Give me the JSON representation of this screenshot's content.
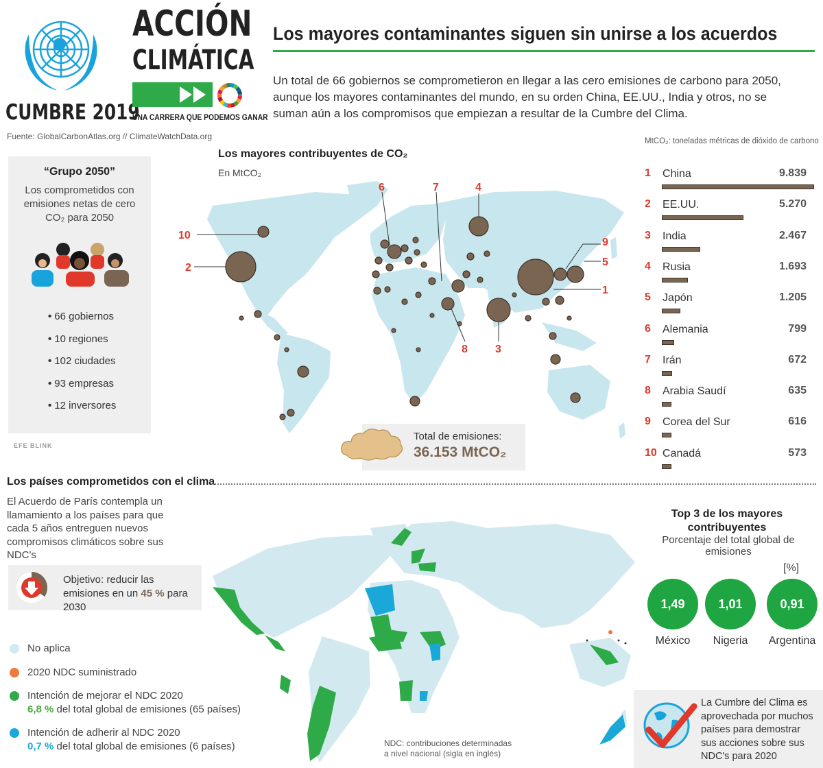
{
  "header": {
    "cumbre": "CUMBRE 2019",
    "accion": "ACCIÓN",
    "climatica": "CLIMÁTICA",
    "tagline": "UNA CARRERA QUE PODEMOS GANAR",
    "source": "Fuente: GlobalCarbonAtlas.org // ClimateWatchData.org",
    "headline": "Los mayores contaminantes siguen sin unirse a los acuerdos",
    "intro": "Un total de 66 gobiernos se comprometieron en llegar a las cero emisiones de carbono para 2050, aunque los mayores contaminantes del mundo, en su orden China, EE.UU., India y otros, no se suman aún a los compromisos que empiezan a resultar de la Cumbre del Clima."
  },
  "grupo2050": {
    "title": "“Grupo 2050”",
    "desc": "Los comprometidos con emisiones netas de cero CO₂ para 2050",
    "items": [
      {
        "num": "66",
        "label": "gobiernos"
      },
      {
        "num": "10",
        "label": "regiones"
      },
      {
        "num": "102",
        "label": "ciudades"
      },
      {
        "num": "93",
        "label": "empresas"
      },
      {
        "num": "12",
        "label": "inversores"
      }
    ],
    "credit": "EFE BLINK"
  },
  "map1": {
    "title": "Los mayores contribuyentes de CO₂",
    "subtitle": "En MtCO₂",
    "callouts": [
      "1",
      "2",
      "3",
      "4",
      "5",
      "6",
      "7",
      "8",
      "9",
      "10"
    ],
    "total_label": "Total de emisiones:",
    "total_value": "36.153 MtCO₂"
  },
  "ranking": {
    "note": "MtCO₂: toneladas métricas de dióxido de carbono",
    "max": 9839,
    "rows": [
      {
        "rank": "1",
        "country": "China",
        "value_label": "9.839",
        "value": 9839
      },
      {
        "rank": "2",
        "country": "EE.UU.",
        "value_label": "5.270",
        "value": 5270
      },
      {
        "rank": "3",
        "country": "India",
        "value_label": "2.467",
        "value": 2467
      },
      {
        "rank": "4",
        "country": "Rusia",
        "value_label": "1.693",
        "value": 1693
      },
      {
        "rank": "5",
        "country": "Japón",
        "value_label": "1.205",
        "value": 1205
      },
      {
        "rank": "6",
        "country": "Alemania",
        "value_label": "799",
        "value": 799
      },
      {
        "rank": "7",
        "country": "Irán",
        "value_label": "672",
        "value": 672
      },
      {
        "rank": "8",
        "country": "Arabia Saudí",
        "value_label": "635",
        "value": 635
      },
      {
        "rank": "9",
        "country": "Corea del Sur",
        "value_label": "616",
        "value": 616
      },
      {
        "rank": "10",
        "country": "Canadá",
        "value_label": "573",
        "value": 573
      }
    ]
  },
  "section2": {
    "title": "Los países comprometidos con el clima",
    "desc": "El Acuerdo de París contempla un llamamiento a los países para que cada 5 años entreguen nuevos compromisos climáticos sobre sus NDC's",
    "objective_pre": "Objetivo: reducir las emisiones en un ",
    "objective_pct": "45 %",
    "objective_post": " para 2030",
    "legend": [
      {
        "color": "#d3e9f0",
        "text": "No aplica",
        "sub_pct": "",
        "sub_text": ""
      },
      {
        "color": "#f07a3a",
        "text": "2020 NDC suministrado",
        "sub_pct": "",
        "sub_text": ""
      },
      {
        "color": "#2eaa48",
        "text": "Intención de mejorar el NDC 2020",
        "sub_pct": "6,8 %",
        "sub_text": " del total global de emisiones (65 países)"
      },
      {
        "color": "#1aa8d8",
        "text": "Intención de adherir al NDC 2020",
        "sub_pct": "0,7 %",
        "sub_text": " del total global de emisiones (6 países)"
      }
    ],
    "ndc_note_1": "NDC: contribuciones determinadas",
    "ndc_note_2": "a nivel nacional (sigla en inglés)"
  },
  "top3": {
    "title": "Top 3 de los mayores contribuyentes",
    "subtitle": "Porcentaje del total global de emisiones",
    "unit": "[%]",
    "items": [
      {
        "value": "1,49",
        "country": "México"
      },
      {
        "value": "1,01",
        "country": "Nigeria"
      },
      {
        "value": "0,91",
        "country": "Argentina"
      }
    ]
  },
  "summit": {
    "text": "La Cumbre del Clima es aprovechada por muchos países para demostrar sus acciones sobre sus NDC's para 2020"
  },
  "colors": {
    "green": "#2eaa48",
    "brown": "#7a6553",
    "red": "#e0392c",
    "land": "#c8e6ee",
    "blue": "#1aa8d8",
    "orange": "#f07a3a"
  }
}
